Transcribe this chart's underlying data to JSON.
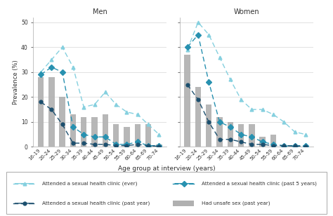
{
  "age_groups": [
    "16-19",
    "20-24",
    "25-29",
    "30-34",
    "35-39",
    "40-44",
    "45-49",
    "50-54",
    "55-59",
    "60-64",
    "65-69",
    "70-74"
  ],
  "men": {
    "ever": [
      30,
      35,
      40,
      32,
      16,
      17,
      22,
      17,
      14,
      13,
      9,
      5
    ],
    "past5": [
      29,
      32,
      30,
      8,
      5,
      4,
      4,
      1,
      1,
      2,
      0.5,
      0.5
    ],
    "pastyear": [
      18,
      15,
      9,
      1.5,
      1.5,
      1,
      1,
      0.5,
      0.5,
      1,
      0.5,
      0.2
    ],
    "unsafe": [
      28,
      28,
      20,
      13,
      12,
      12,
      13,
      9,
      8,
      9,
      9,
      1
    ]
  },
  "women": {
    "ever": [
      39,
      50,
      45,
      36,
      27,
      19,
      15,
      15,
      13,
      10,
      6,
      5
    ],
    "past5": [
      40,
      45,
      26,
      10,
      8,
      5,
      4,
      2,
      1,
      0.5,
      0.5,
      0.5
    ],
    "pastyear": [
      25,
      19,
      10,
      3,
      3,
      2,
      1,
      1,
      0.5,
      0.5,
      0.3,
      0.2
    ],
    "unsafe": [
      37,
      24,
      17,
      12,
      10,
      9,
      9,
      4,
      5,
      0.5,
      0.5,
      0.5
    ]
  },
  "color_ever": "#85d0df",
  "color_past5": "#2891b0",
  "color_pastyear": "#1c4f6e",
  "color_unsafe": "#b0b0b0",
  "ylim": [
    0,
    52
  ],
  "yticks": [
    0,
    10,
    20,
    30,
    40,
    50
  ],
  "xlabel": "Age group at interview (years)",
  "ylabel": "Prevalence (%)",
  "legend_entries": [
    "Attended a sexual health clinic (ever)",
    "Attended a sexual health clinic (past 5 years)",
    "Attended a sexual health clinic (past year)",
    "Had unsafe sex (past year)"
  ]
}
